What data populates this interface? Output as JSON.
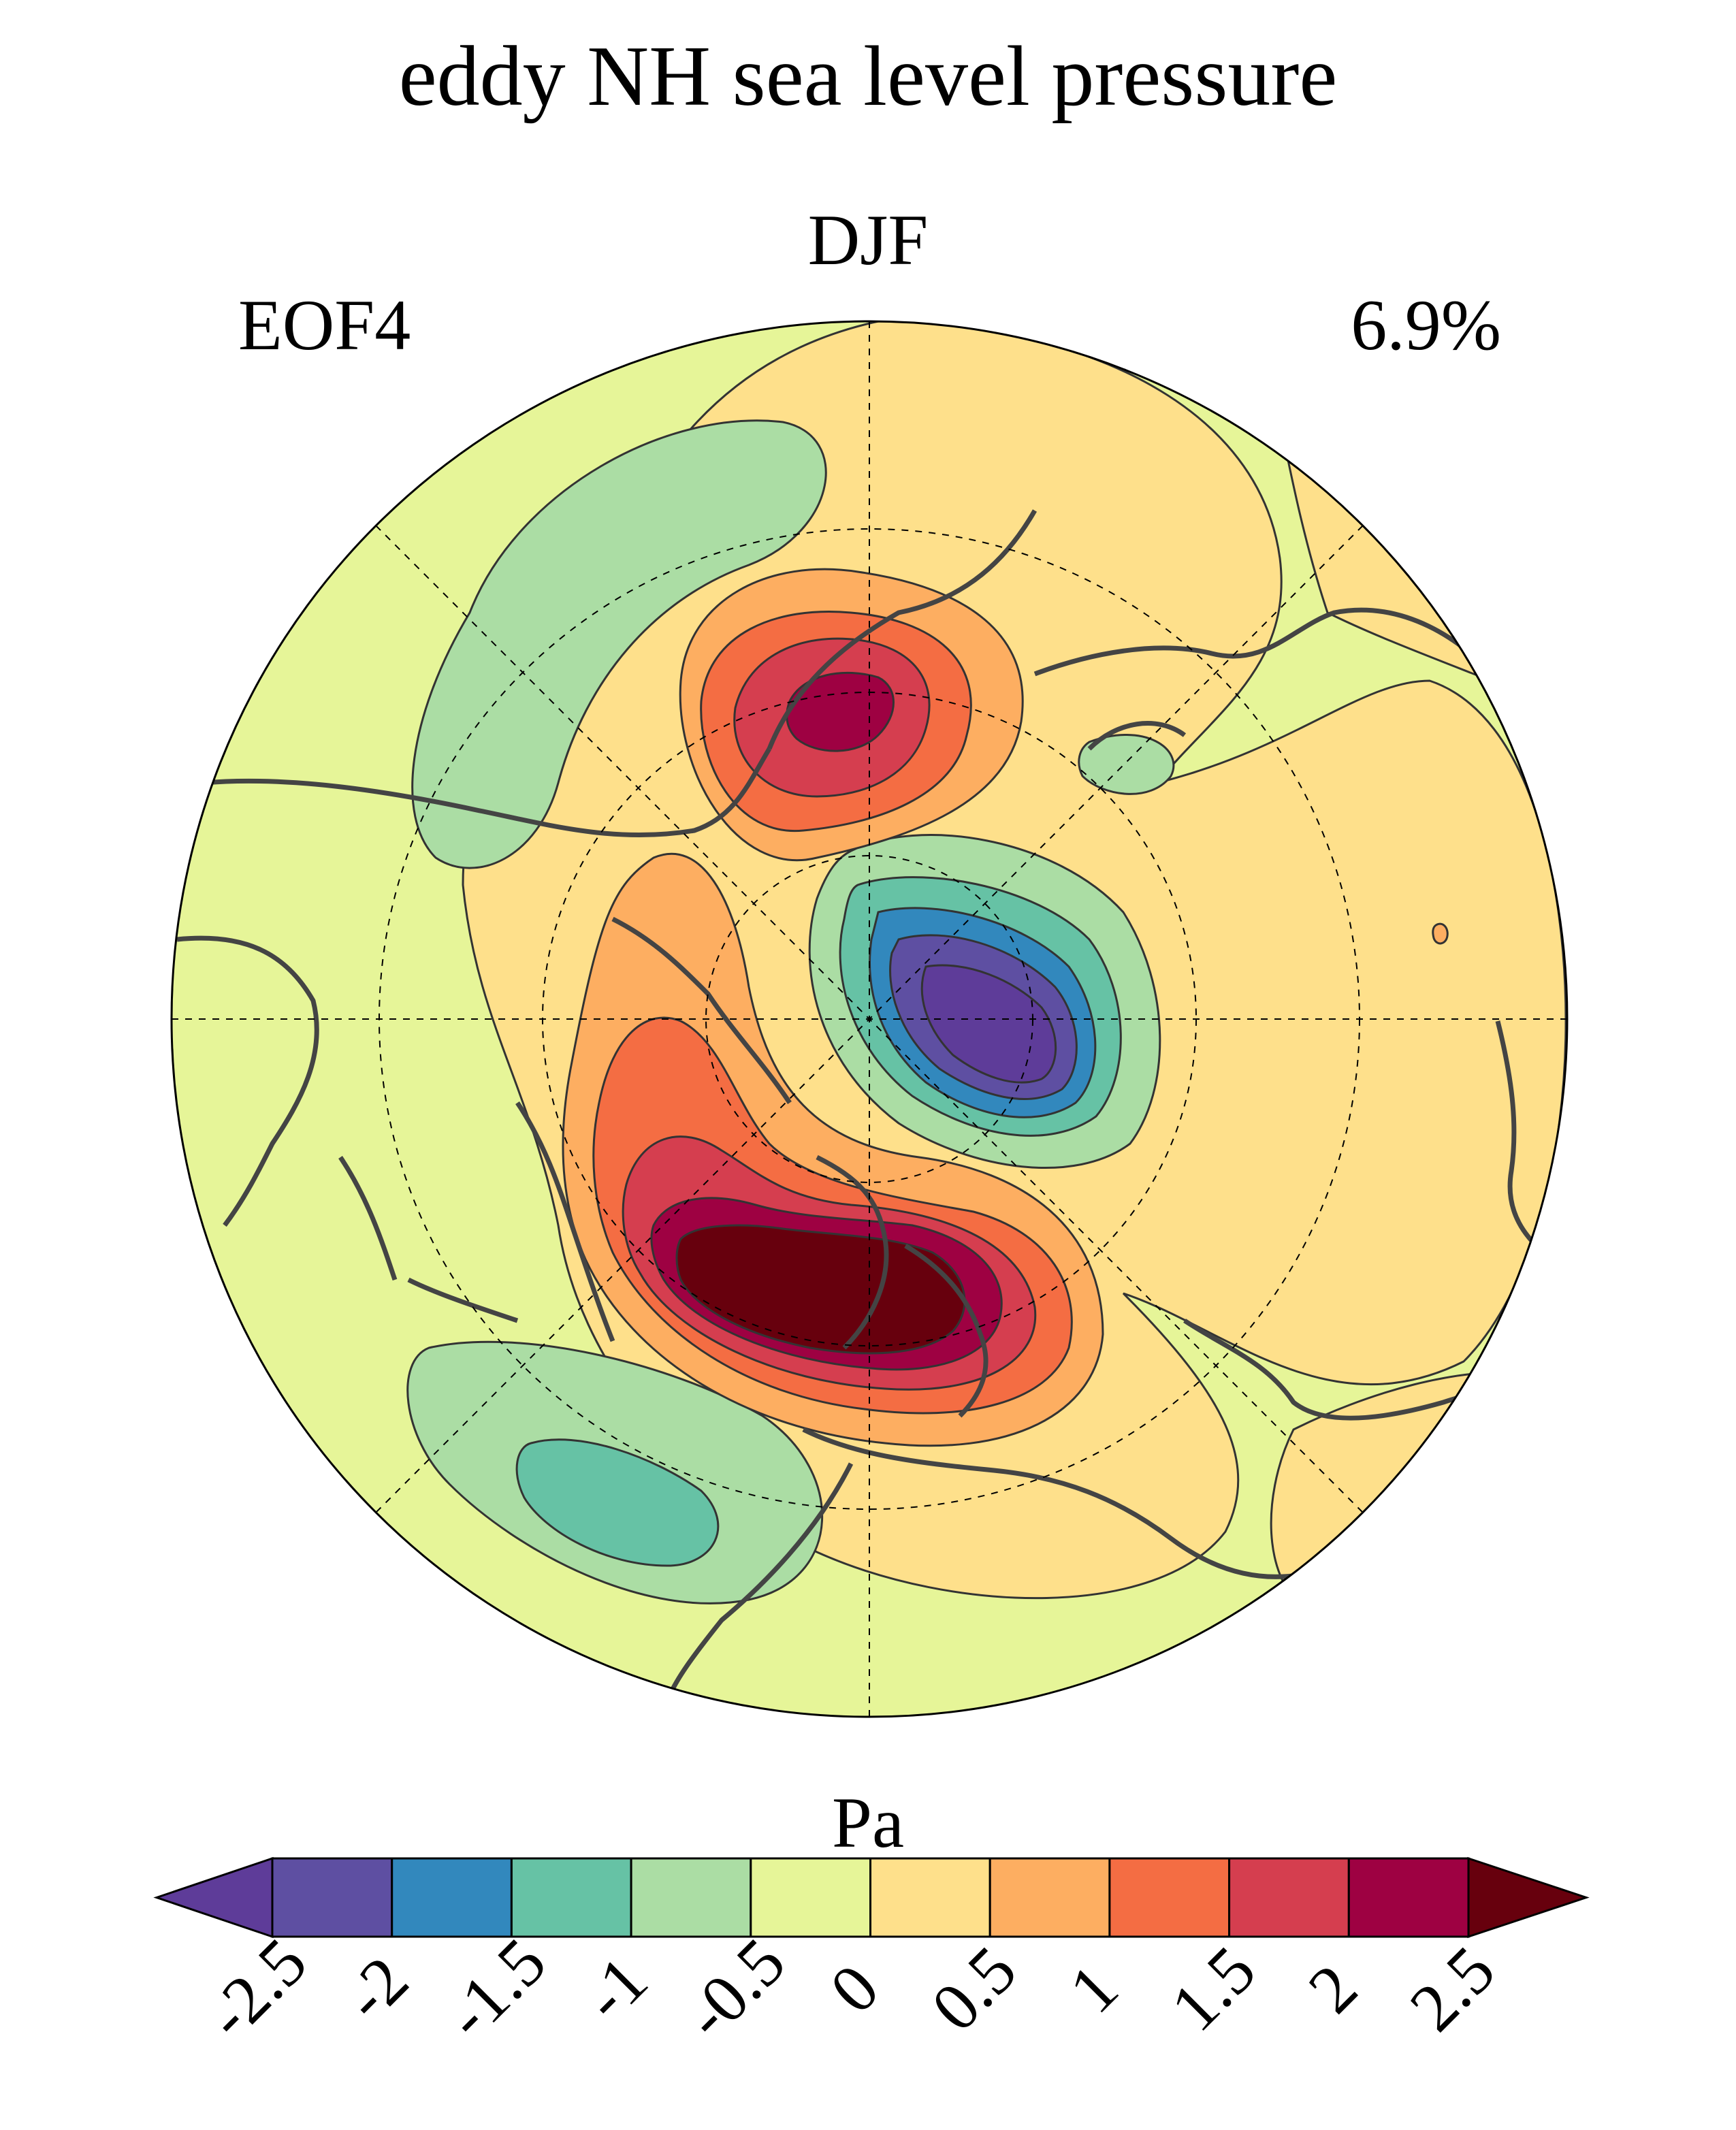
{
  "title": "eddy NH sea level pressure",
  "season": "DJF",
  "eof_label": "EOF4",
  "variance_label": "6.9%",
  "colorbar": {
    "units": "Pa",
    "ticks": [
      "-2.5",
      "-2",
      "-1.5",
      "-1",
      "-0.5",
      "0",
      "0.5",
      "1",
      "1.5",
      "2",
      "2.5"
    ],
    "colors": [
      "#5e3c99",
      "#5e4fa2",
      "#3288bd",
      "#66c2a5",
      "#abdda4",
      "#e6f598",
      "#fee08b",
      "#fdae61",
      "#f46d43",
      "#d53e4f",
      "#9e0142",
      "#67000d"
    ]
  }
}
